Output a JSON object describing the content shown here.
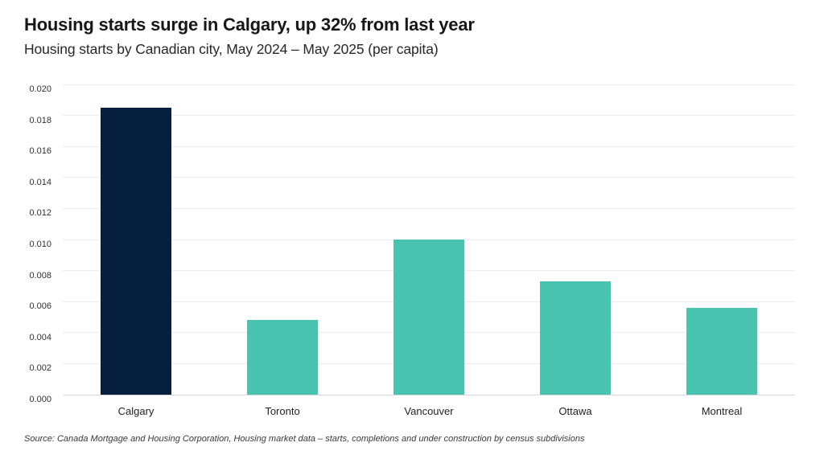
{
  "header": {
    "title": "Housing starts surge in Calgary, up 32% from last year",
    "subtitle": "Housing starts by Canadian city, May 2024 – May 2025 (per capita)"
  },
  "footer": {
    "source": "Source: Canada Mortgage and Housing Corporation, Housing market data – starts, completions and under construction by census subdivisions"
  },
  "colors": {
    "highlight_bar": "#061F3F",
    "default_bar": "#4AC3B0",
    "gridline": "#ECECEC",
    "axis_line": "#D9D9D9",
    "background": "#FFFFFF"
  },
  "chart_data": {
    "type": "bar",
    "title": "Housing starts surge in Calgary, up 32% from last year",
    "subtitle": "Housing starts by Canadian city, May 2024 – May 2025 (per capita)",
    "categories": [
      "Calgary",
      "Toronto",
      "Vancouver",
      "Ottawa",
      "Montreal"
    ],
    "values": [
      0.0185,
      0.0048,
      0.01,
      0.0073,
      0.0056
    ],
    "bar_colors": [
      "#061F3F",
      "#4AC3B0",
      "#4AC3B0",
      "#4AC3B0",
      "#4AC3B0"
    ],
    "xlabel": "",
    "ylabel": "",
    "ylim": [
      0,
      0.02
    ],
    "ytick_labels": [
      "0.000",
      "0.002",
      "0.004",
      "0.006",
      "0.008",
      "0.010",
      "0.012",
      "0.014",
      "0.016",
      "0.018",
      "0.020"
    ],
    "grid": "horizontal",
    "legend": "none"
  }
}
